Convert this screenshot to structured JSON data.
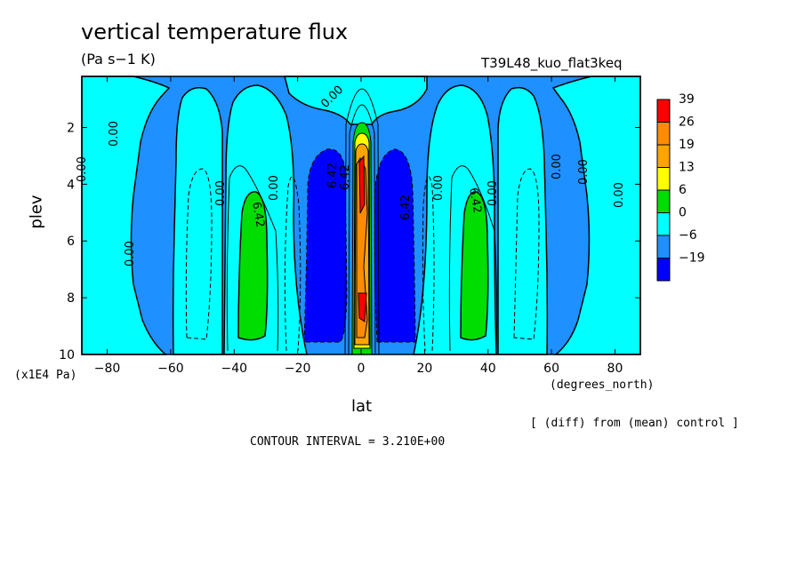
{
  "chart_data": {
    "type": "heatmap",
    "title": "vertical temperature flux",
    "subtitle": "(Pa s−1 K)",
    "run_name": "T39L48_kuo_flat3keq",
    "xlabel": "lat",
    "xunit": "(degrees_north)",
    "ylabel": "plev",
    "yunit": "(x1E4 Pa)",
    "xlim": [
      -88,
      88
    ],
    "ylim": [
      10,
      0.2
    ],
    "xticks": [
      "−80",
      "−60",
      "−40",
      "−20",
      "0",
      "20",
      "40",
      "60",
      "80"
    ],
    "xtick_values": [
      -80,
      -60,
      -40,
      -20,
      0,
      20,
      40,
      60,
      80
    ],
    "yticks": [
      "2",
      "4",
      "6",
      "8",
      "10"
    ],
    "ytick_values": [
      2,
      4,
      6,
      8,
      10
    ],
    "legend": {
      "placement": "right",
      "labels": [
        "39",
        "26",
        "19",
        "13",
        "6",
        "0",
        "−6",
        "−19"
      ],
      "colors": [
        "#ff0000",
        "#ff8c00",
        "#ffa500",
        "#ffff00",
        "#00dd00",
        "#00ffff",
        "#1e90ff",
        "#0000ff"
      ]
    },
    "contour_labels": [
      "0.00",
      "0.00",
      "0.00",
      "0.00",
      "0.00",
      "0.00",
      "0.00",
      "0.00",
      "0.00",
      "0.00",
      "0.00",
      "6.42",
      "6.42",
      "6.42",
      "6.42",
      "6.42"
    ],
    "regions": {
      "negative_deep": [
        {
          "lat": [
            -17,
            -4
          ],
          "plev": [
            2.5,
            9.6
          ]
        },
        {
          "lat": [
            4,
            17
          ],
          "plev": [
            2.5,
            9.6
          ]
        }
      ],
      "positive_midlat": [
        {
          "lat": [
            -37,
            -30
          ],
          "plev": [
            4.2,
            9.3
          ]
        },
        {
          "lat": [
            30,
            37
          ],
          "plev": [
            4.2,
            9.3
          ]
        }
      ],
      "positive_equator": {
        "lat": [
          -4,
          4
        ],
        "plev": [
          1.8,
          10
        ],
        "max": 39
      }
    },
    "note": "[ (diff) from (mean) control ]",
    "contour_interval": "CONTOUR INTERVAL = 3.210E+00"
  }
}
